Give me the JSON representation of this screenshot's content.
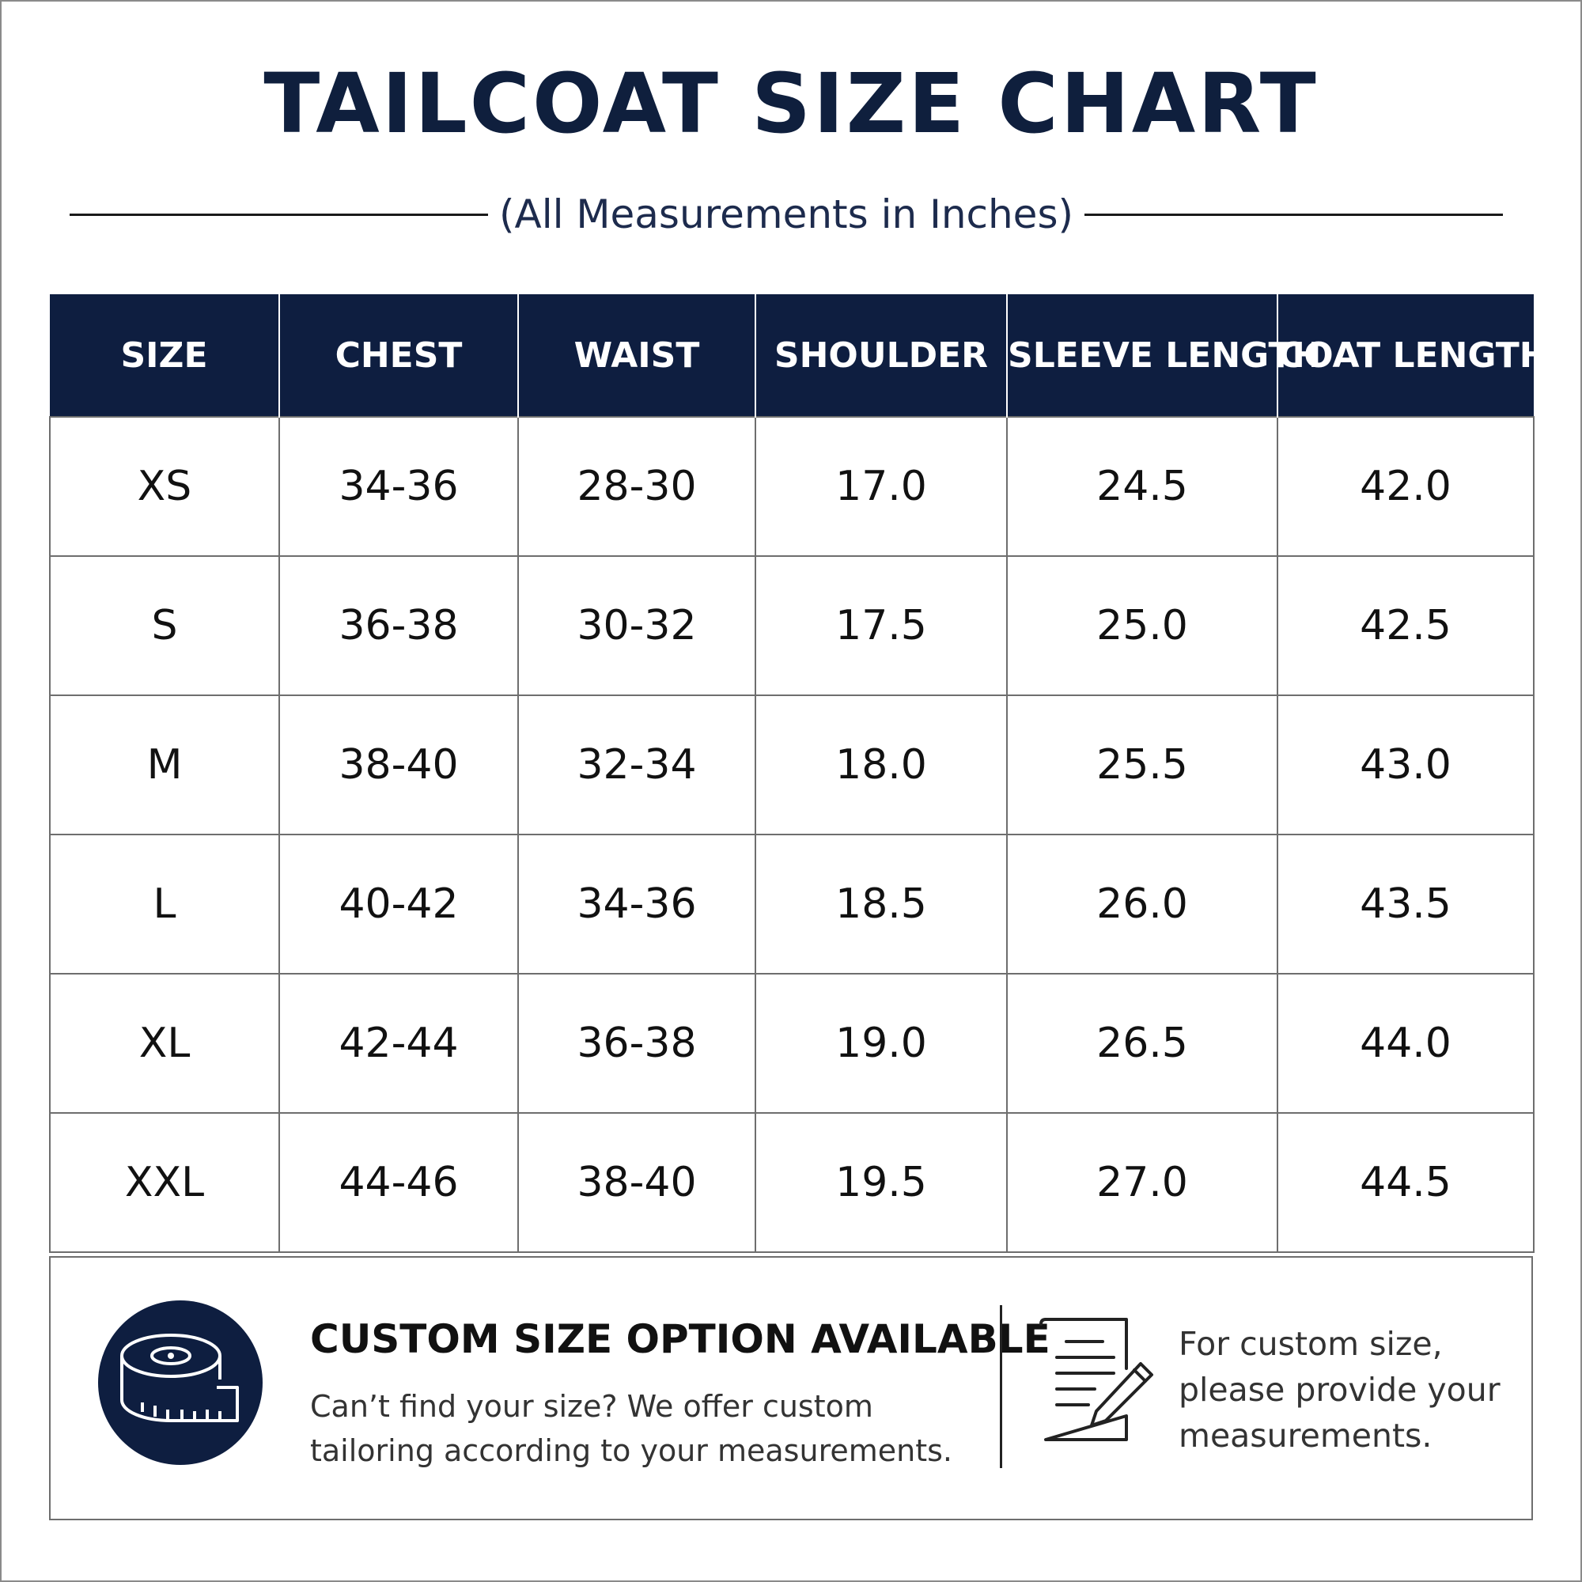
{
  "header": {
    "title": "TAILCOAT SIZE CHART",
    "subtitle": "(All Measurements in Inches)"
  },
  "table": {
    "columns": [
      "SIZE",
      "CHEST",
      "WAIST",
      "SHOULDER",
      "SLEEVE LENGTH",
      "COAT LENGTH"
    ],
    "rows": [
      [
        "XS",
        "34-36",
        "28-30",
        "17.0",
        "24.5",
        "42.0"
      ],
      [
        "S",
        "36-38",
        "30-32",
        "17.5",
        "25.0",
        "42.5"
      ],
      [
        "M",
        "38-40",
        "32-34",
        "18.0",
        "25.5",
        "43.0"
      ],
      [
        "L",
        "40-42",
        "34-36",
        "18.5",
        "26.0",
        "43.5"
      ],
      [
        "XL",
        "42-44",
        "36-38",
        "19.0",
        "26.5",
        "44.0"
      ],
      [
        "XXL",
        "44-46",
        "38-40",
        "19.5",
        "27.0",
        "44.5"
      ]
    ]
  },
  "custom": {
    "title": "CUSTOM SIZE OPTION AVAILABLE",
    "description": "Can’t find your size? We offer custom tailoring according to your measurements.",
    "provide_note": "For custom size, please provide your measurements.",
    "badge_icon": "measuring-tape-icon",
    "note_icon": "document-pencil-icon"
  },
  "colors": {
    "navy": "#0e1e40",
    "title_navy": "#0f1f3d"
  }
}
